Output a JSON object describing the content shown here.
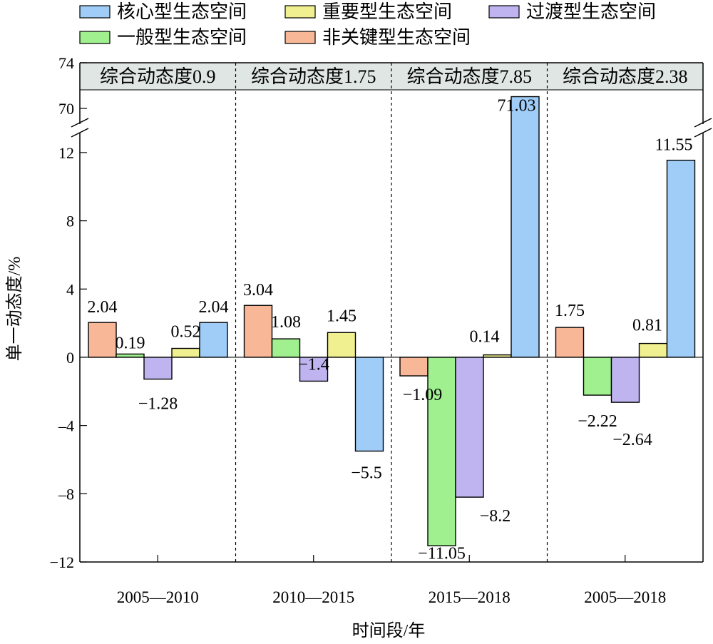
{
  "chart_data": {
    "type": "bar",
    "xlabel": "时间段/年",
    "ylabel": "单一动态度/%",
    "categories": [
      "2005—2010",
      "2010—2015",
      "2015—2018",
      "2005—2018"
    ],
    "composite_labels": [
      "综合动态度0.9",
      "综合动态度1.75",
      "综合动态度7.85",
      "综合动态度2.38"
    ],
    "series_order": [
      "非关键型生态空间",
      "一般型生态空间",
      "过渡型生态空间",
      "重要型生态空间",
      "核心型生态空间"
    ],
    "series": [
      {
        "name": "非关键型生态空间",
        "color": "#f8b898",
        "values": [
          2.04,
          3.04,
          -1.09,
          1.75
        ]
      },
      {
        "name": "一般型生态空间",
        "color": "#a0f090",
        "values": [
          0.19,
          1.08,
          -11.05,
          -2.22
        ]
      },
      {
        "name": "过渡型生态空间",
        "color": "#c0b4f0",
        "values": [
          -1.28,
          -1.4,
          -8.2,
          -2.64
        ]
      },
      {
        "name": "重要型生态空间",
        "color": "#f0f090",
        "values": [
          0.52,
          1.45,
          0.14,
          0.81
        ]
      },
      {
        "name": "核心型生态空间",
        "color": "#a0cdf8",
        "values": [
          2.04,
          -5.5,
          71.03,
          11.55
        ]
      }
    ],
    "data_labels": [
      [
        "2.04",
        "0.19",
        "−1.28",
        "0.52",
        "2.04"
      ],
      [
        "3.04",
        "1.08",
        "−1.4",
        "1.45",
        "−5.5"
      ],
      [
        "−1.09",
        "−11.05",
        "−8.2",
        "0.14",
        "71.03"
      ],
      [
        "1.75",
        "−2.22",
        "−2.64",
        "0.81",
        "11.55"
      ]
    ],
    "legend": {
      "placement": "top",
      "rows": [
        [
          "核心型生态空间",
          "重要型生态空间",
          "过渡型生态空间"
        ],
        [
          "一般型生态空间",
          "非关键型生态空间"
        ]
      ]
    },
    "y_axis": {
      "broken": true,
      "lower_range": [
        -12,
        13
      ],
      "upper_range": [
        69,
        74
      ],
      "lower_ticks": [
        -12,
        -8,
        -4,
        0,
        4,
        8,
        12
      ],
      "upper_ticks": [
        70,
        74
      ],
      "tick_labels": {
        "-12": "−12",
        "-8": "–8",
        "-4": "–4",
        "0": "0",
        "4": "4",
        "8": "8",
        "12": "12",
        "70": "70",
        "74": "74"
      }
    },
    "grid": false
  }
}
